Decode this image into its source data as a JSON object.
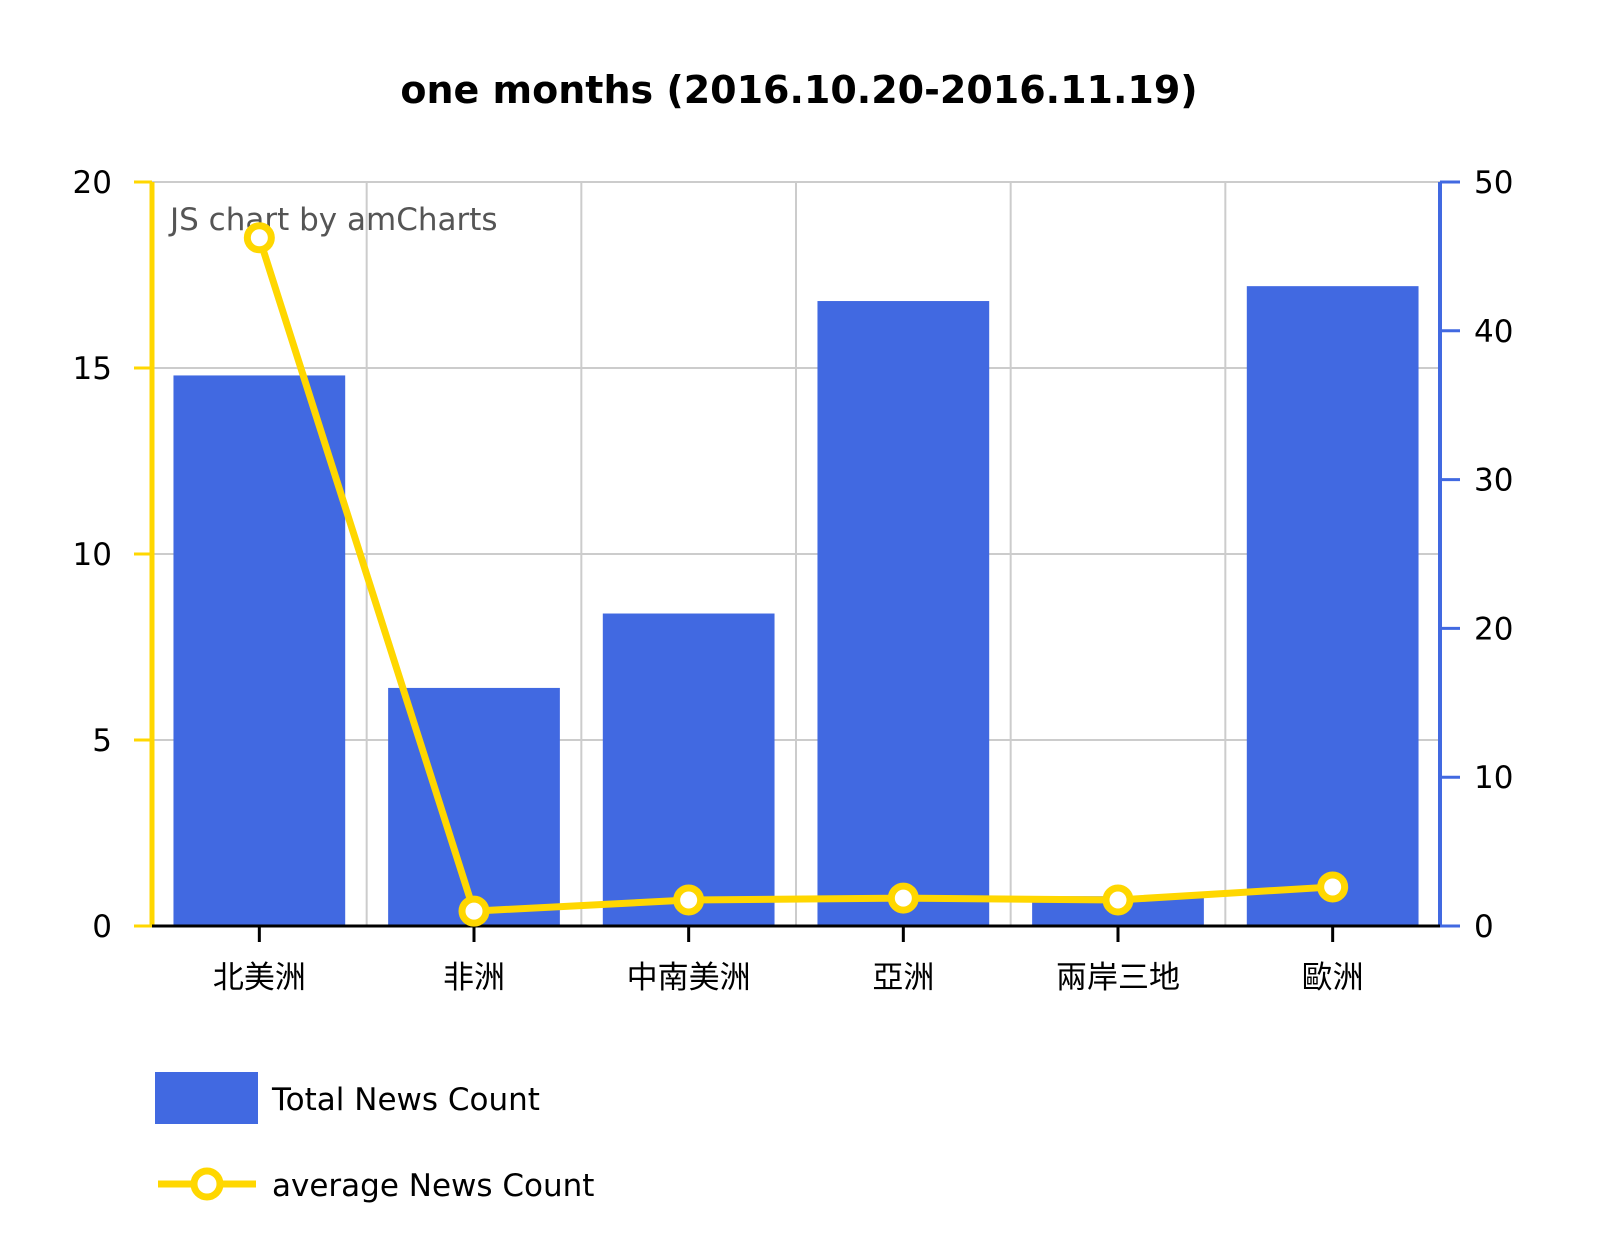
{
  "chart_data": {
    "type": "bar",
    "title": "one months (2016.10.20-2016.11.19)",
    "watermark": "JS chart by amCharts",
    "categories": [
      "北美洲",
      "非洲",
      "中南美洲",
      "亞洲",
      "兩岸三地",
      "歐洲"
    ],
    "series": [
      {
        "name": "Total News Count",
        "type": "bar",
        "axis": "right",
        "color": "#4169e1",
        "values": [
          37,
          16,
          21,
          42,
          2,
          43
        ]
      },
      {
        "name": "average News Count",
        "type": "line",
        "axis": "left",
        "color": "#ffd700",
        "values": [
          18.5,
          0.4,
          0.7,
          0.75,
          0.7,
          1.05
        ]
      }
    ],
    "y_left": {
      "min": 0,
      "max": 20,
      "ticks": [
        "0",
        "5",
        "10",
        "15",
        "20"
      ],
      "color": "#ffd700"
    },
    "y_right": {
      "min": 0,
      "max": 50,
      "ticks": [
        "0",
        "10",
        "20",
        "30",
        "40",
        "50"
      ],
      "color": "#4169e1"
    },
    "grid": true,
    "legend_position": "bottom-left"
  }
}
